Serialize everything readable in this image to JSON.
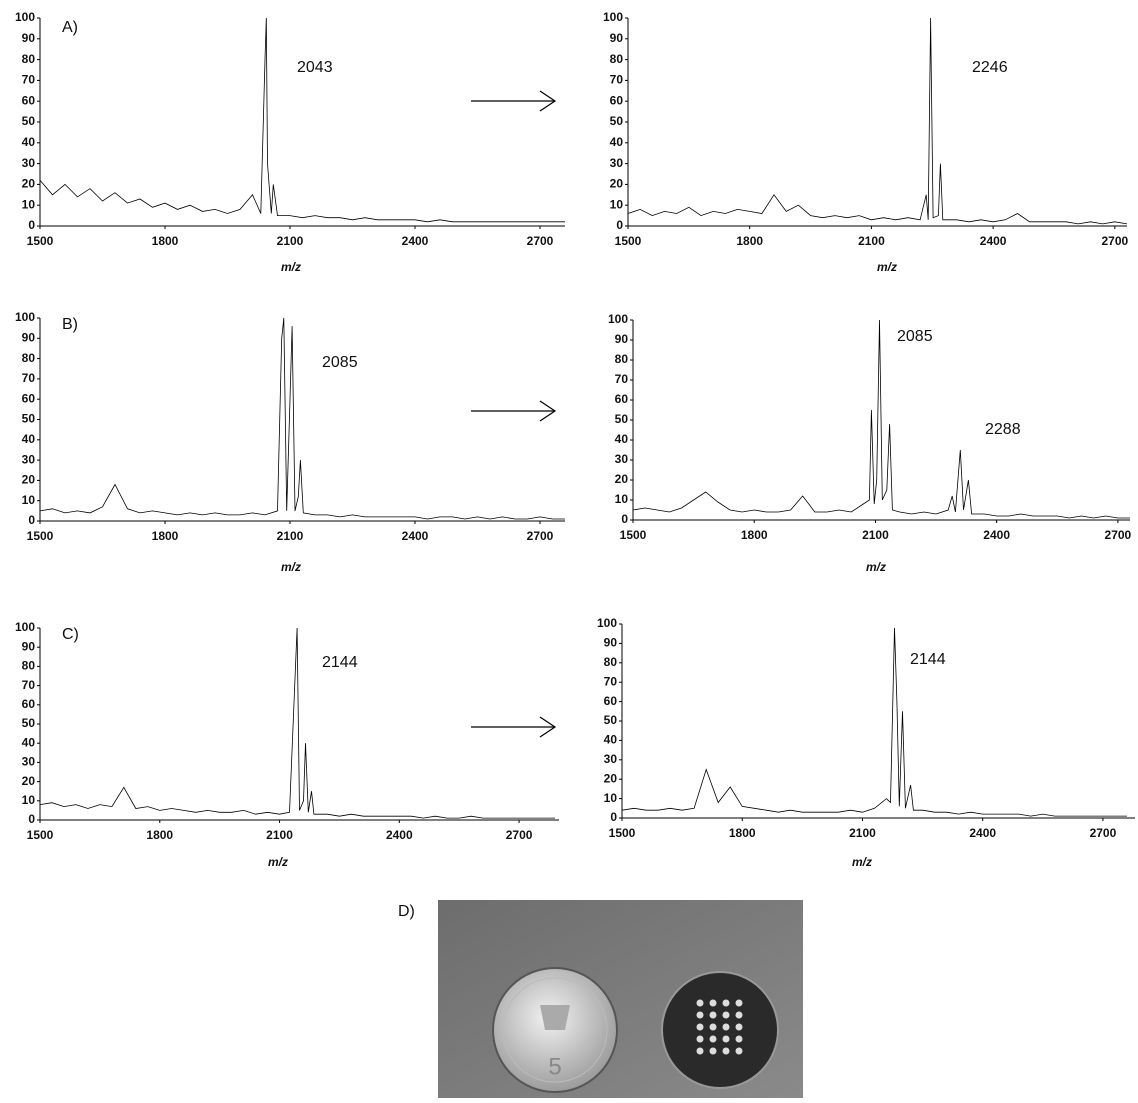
{
  "chart_data": [
    {
      "type": "line",
      "panel_label": "A)",
      "x_label": "m/z",
      "annotations": [
        "2043"
      ],
      "color": "#000000",
      "xlim": [
        1500,
        2760
      ],
      "ylim": [
        0,
        100
      ],
      "xticks": [
        1500,
        1800,
        2100,
        2400,
        2700
      ],
      "yticks": [
        0,
        10,
        20,
        30,
        40,
        50,
        60,
        70,
        80,
        90,
        100
      ],
      "x": [
        1500,
        1530,
        1560,
        1590,
        1620,
        1650,
        1680,
        1710,
        1740,
        1770,
        1800,
        1830,
        1860,
        1890,
        1920,
        1950,
        1980,
        2010,
        2030,
        2040,
        2043,
        2046,
        2055,
        2060,
        2070,
        2100,
        2130,
        2160,
        2190,
        2220,
        2250,
        2280,
        2310,
        2340,
        2370,
        2400,
        2430,
        2460,
        2490,
        2520,
        2550,
        2580,
        2610,
        2640,
        2670,
        2700,
        2730,
        2760
      ],
      "values": [
        22,
        15,
        20,
        14,
        18,
        12,
        16,
        11,
        13,
        9,
        11,
        8,
        10,
        7,
        8,
        6,
        8,
        15,
        6,
        80,
        100,
        30,
        6,
        20,
        5,
        5,
        4,
        5,
        4,
        4,
        3,
        4,
        3,
        3,
        3,
        3,
        2,
        3,
        2,
        2,
        2,
        2,
        2,
        2,
        2,
        2,
        2,
        2
      ]
    },
    {
      "type": "line",
      "x_label": "m/z",
      "annotations": [
        "2246"
      ],
      "color": "#000000",
      "xlim": [
        1500,
        2730
      ],
      "ylim": [
        0,
        100
      ],
      "xticks": [
        1500,
        1800,
        2100,
        2400,
        2700
      ],
      "yticks": [
        0,
        10,
        20,
        30,
        40,
        50,
        60,
        70,
        80,
        90,
        100
      ],
      "x": [
        1500,
        1530,
        1560,
        1590,
        1620,
        1650,
        1680,
        1710,
        1740,
        1770,
        1800,
        1830,
        1860,
        1890,
        1920,
        1950,
        1980,
        2010,
        2040,
        2070,
        2100,
        2130,
        2160,
        2190,
        2220,
        2235,
        2240,
        2246,
        2252,
        2265,
        2270,
        2276,
        2310,
        2340,
        2370,
        2400,
        2430,
        2460,
        2490,
        2520,
        2550,
        2580,
        2610,
        2640,
        2670,
        2700,
        2730
      ],
      "values": [
        6,
        8,
        5,
        7,
        6,
        9,
        5,
        7,
        6,
        8,
        7,
        6,
        15,
        7,
        10,
        5,
        4,
        5,
        4,
        5,
        3,
        4,
        3,
        4,
        3,
        15,
        3,
        100,
        4,
        5,
        30,
        3,
        3,
        2,
        3,
        2,
        3,
        6,
        2,
        2,
        2,
        2,
        1,
        2,
        1,
        2,
        1
      ]
    },
    {
      "type": "line",
      "panel_label": "B)",
      "x_label": "m/z",
      "annotations": [
        "2085"
      ],
      "color": "#000000",
      "xlim": [
        1500,
        2760
      ],
      "ylim": [
        0,
        100
      ],
      "xticks": [
        1500,
        1800,
        2100,
        2400,
        2700
      ],
      "yticks": [
        0,
        10,
        20,
        30,
        40,
        50,
        60,
        70,
        80,
        90,
        100
      ],
      "x": [
        1500,
        1530,
        1560,
        1590,
        1620,
        1650,
        1680,
        1710,
        1740,
        1770,
        1800,
        1830,
        1860,
        1890,
        1920,
        1950,
        1980,
        2010,
        2040,
        2070,
        2080,
        2085,
        2092,
        2100,
        2105,
        2112,
        2120,
        2125,
        2132,
        2160,
        2190,
        2220,
        2250,
        2280,
        2310,
        2340,
        2370,
        2400,
        2430,
        2460,
        2490,
        2520,
        2550,
        2580,
        2610,
        2640,
        2670,
        2700,
        2730,
        2760
      ],
      "values": [
        5,
        6,
        4,
        5,
        4,
        7,
        18,
        6,
        4,
        5,
        4,
        3,
        4,
        3,
        4,
        3,
        3,
        4,
        3,
        5,
        90,
        100,
        5,
        60,
        96,
        5,
        12,
        30,
        4,
        3,
        3,
        2,
        3,
        2,
        2,
        2,
        2,
        2,
        1,
        2,
        2,
        1,
        2,
        1,
        2,
        1,
        1,
        2,
        1,
        1
      ]
    },
    {
      "type": "line",
      "x_label": "m/z",
      "annotations": [
        "2085",
        "2288"
      ],
      "color": "#000000",
      "xlim": [
        1500,
        2730
      ],
      "ylim": [
        0,
        100
      ],
      "xticks": [
        1500,
        1800,
        2100,
        2400,
        2700
      ],
      "yticks": [
        0,
        10,
        20,
        30,
        40,
        50,
        60,
        70,
        80,
        90,
        100
      ],
      "x": [
        1500,
        1530,
        1560,
        1590,
        1620,
        1650,
        1680,
        1710,
        1740,
        1770,
        1800,
        1830,
        1860,
        1890,
        1920,
        1950,
        1980,
        2010,
        2040,
        2070,
        2085,
        2090,
        2097,
        2103,
        2110,
        2117,
        2128,
        2135,
        2142,
        2160,
        2190,
        2220,
        2250,
        2280,
        2290,
        2298,
        2310,
        2318,
        2330,
        2338,
        2370,
        2400,
        2430,
        2460,
        2490,
        2520,
        2550,
        2580,
        2610,
        2640,
        2670,
        2700,
        2730
      ],
      "values": [
        5,
        6,
        5,
        4,
        6,
        10,
        14,
        9,
        5,
        4,
        5,
        4,
        4,
        5,
        12,
        4,
        4,
        5,
        4,
        8,
        10,
        55,
        8,
        20,
        100,
        10,
        15,
        48,
        5,
        4,
        3,
        4,
        3,
        5,
        12,
        4,
        35,
        5,
        20,
        3,
        3,
        2,
        2,
        3,
        2,
        2,
        2,
        1,
        2,
        1,
        2,
        1,
        1
      ]
    },
    {
      "type": "line",
      "panel_label": "C)",
      "x_label": "m/z",
      "annotations": [
        "2144"
      ],
      "color": "#000000",
      "xlim": [
        1500,
        2800
      ],
      "ylim": [
        0,
        100
      ],
      "xticks": [
        1500,
        1800,
        2100,
        2400,
        2700
      ],
      "yticks": [
        0,
        10,
        20,
        30,
        40,
        50,
        60,
        70,
        80,
        90,
        100
      ],
      "x": [
        1500,
        1530,
        1560,
        1590,
        1620,
        1650,
        1680,
        1710,
        1740,
        1770,
        1800,
        1830,
        1860,
        1890,
        1920,
        1950,
        1980,
        2010,
        2040,
        2070,
        2100,
        2125,
        2140,
        2144,
        2150,
        2160,
        2165,
        2172,
        2180,
        2186,
        2220,
        2250,
        2280,
        2310,
        2340,
        2370,
        2400,
        2430,
        2460,
        2490,
        2520,
        2550,
        2580,
        2610,
        2640,
        2670,
        2700,
        2730,
        2760,
        2790
      ],
      "values": [
        8,
        9,
        7,
        8,
        6,
        8,
        7,
        17,
        6,
        7,
        5,
        6,
        5,
        4,
        5,
        4,
        4,
        5,
        3,
        4,
        3,
        4,
        80,
        100,
        5,
        10,
        40,
        4,
        15,
        3,
        3,
        2,
        3,
        2,
        2,
        2,
        2,
        2,
        1,
        2,
        1,
        1,
        2,
        1,
        1,
        1,
        1,
        1,
        1,
        1
      ]
    },
    {
      "type": "line",
      "x_label": "m/z",
      "annotations": [
        "2144"
      ],
      "color": "#000000",
      "xlim": [
        1500,
        2780
      ],
      "ylim": [
        0,
        100
      ],
      "xticks": [
        1500,
        1800,
        2100,
        2400,
        2700
      ],
      "yticks": [
        0,
        10,
        20,
        30,
        40,
        50,
        60,
        70,
        80,
        90,
        100
      ],
      "x": [
        1500,
        1530,
        1560,
        1590,
        1620,
        1650,
        1680,
        1710,
        1740,
        1770,
        1800,
        1830,
        1860,
        1890,
        1920,
        1950,
        1980,
        2010,
        2040,
        2070,
        2100,
        2130,
        2160,
        2170,
        2180,
        2186,
        2192,
        2200,
        2207,
        2220,
        2227,
        2250,
        2280,
        2310,
        2340,
        2370,
        2400,
        2430,
        2460,
        2490,
        2520,
        2550,
        2580,
        2610,
        2640,
        2670,
        2700,
        2730,
        2760
      ],
      "values": [
        4,
        5,
        4,
        4,
        5,
        4,
        5,
        25,
        8,
        16,
        6,
        5,
        4,
        3,
        4,
        3,
        3,
        3,
        3,
        4,
        3,
        5,
        10,
        8,
        98,
        60,
        6,
        55,
        5,
        17,
        4,
        4,
        3,
        3,
        2,
        3,
        2,
        2,
        2,
        2,
        1,
        2,
        1,
        1,
        1,
        1,
        1,
        1,
        1
      ]
    }
  ],
  "photo": {
    "label": "D)"
  }
}
